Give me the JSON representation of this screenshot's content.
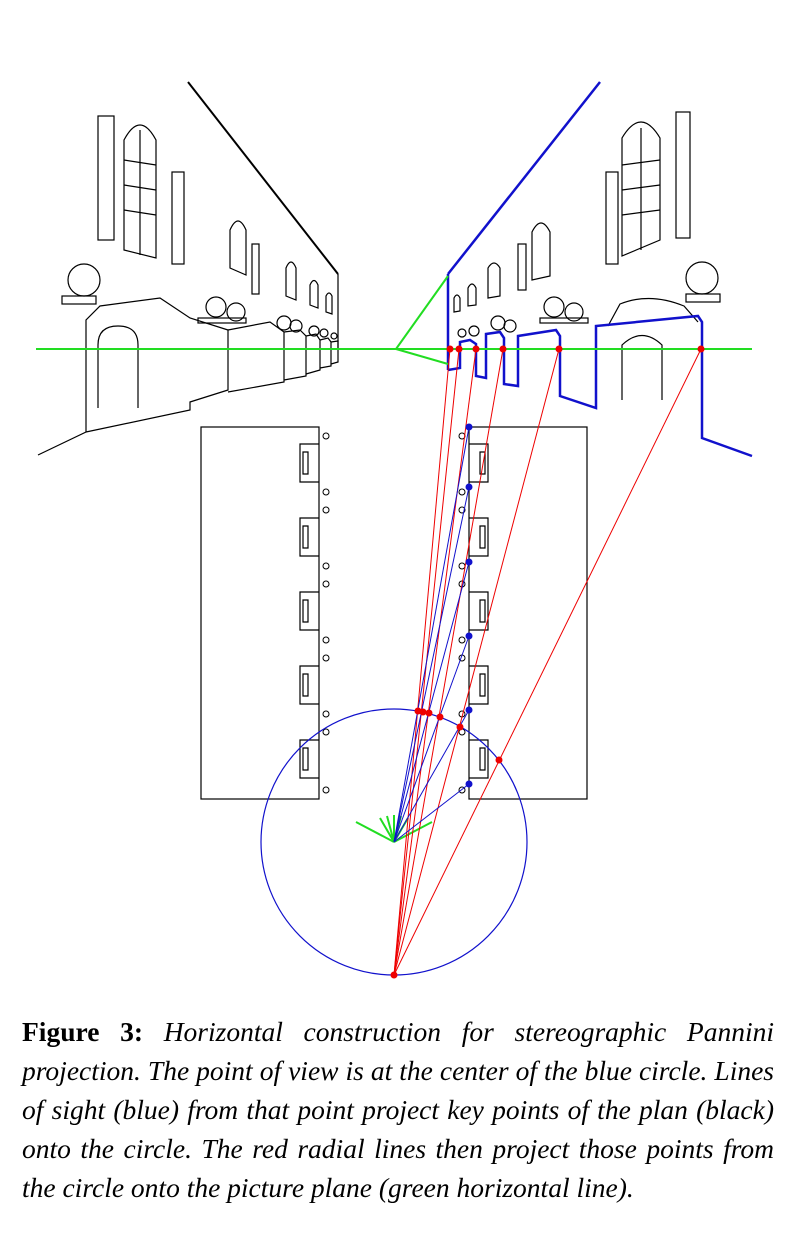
{
  "caption": {
    "label": "Figure 3:",
    "text": "Horizontal construction for stereographic Pannini projection. The point of view is at the center of the blue circle. Lines of sight (blue) from that point project key points of the plan (black) onto the circle. The red radial lines then project those points from the circle onto the picture plane (green horizontal line)."
  },
  "colors": {
    "plan": "#000000",
    "sight_lines": "#0000cc",
    "radial_lines": "#ee0000",
    "picture_plane": "#22dd22"
  },
  "icons": [
    "stereographic-construction-diagram"
  ]
}
